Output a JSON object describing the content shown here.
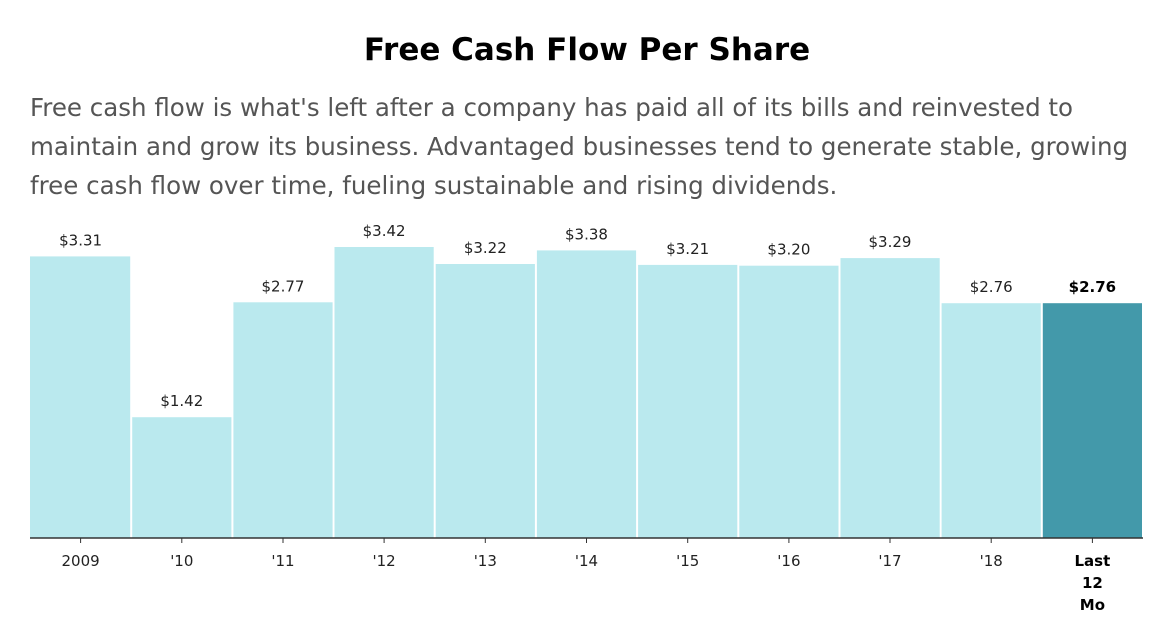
{
  "chart_data": {
    "type": "bar",
    "title": "Free Cash Flow Per Share",
    "subtitle": "Free cash flow is what's left after a company has paid all of its bills and reinvested to maintain and grow its business. Advantaged businesses tend to generate stable, growing free cash flow over time, fueling sustainable and rising dividends.",
    "categories": [
      "2009",
      "'10",
      "'11",
      "'12",
      "'13",
      "'14",
      "'15",
      "'16",
      "'17",
      "'18",
      "Last 12 Mo"
    ],
    "category_lines": [
      [
        "2009"
      ],
      [
        "'10"
      ],
      [
        "'11"
      ],
      [
        "'12"
      ],
      [
        "'13"
      ],
      [
        "'14"
      ],
      [
        "'15"
      ],
      [
        "'16"
      ],
      [
        "'17"
      ],
      [
        "'18"
      ],
      [
        "Last",
        "12",
        "Mo"
      ]
    ],
    "values": [
      3.31,
      1.42,
      2.77,
      3.42,
      3.22,
      3.38,
      3.21,
      3.2,
      3.29,
      2.76,
      2.76
    ],
    "value_labels": [
      "$3.31",
      "$1.42",
      "$2.77",
      "$3.42",
      "$3.22",
      "$3.38",
      "$3.21",
      "$3.20",
      "$3.29",
      "$2.76",
      "$2.76"
    ],
    "highlight_index": 10,
    "ylim": [
      0,
      3.42
    ],
    "xlabel": "",
    "ylabel": "",
    "grid": false,
    "colors": {
      "bar": "#bae9ee",
      "highlight": "#4399aa",
      "axis": "#333333",
      "label": "#222222"
    }
  }
}
